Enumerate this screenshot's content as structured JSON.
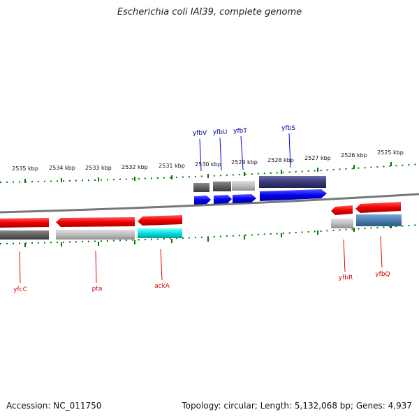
{
  "header": {
    "title": "Escherichia coli IAI39, complete genome"
  },
  "footer": {
    "accession": "Accession: NC_011750",
    "summary": "Topology: circular; Length: 5,132,068 bp; Genes: 4,937"
  },
  "scale": {
    "tick_labels": [
      "2535 kbp",
      "2534 kbp",
      "2533 kbp",
      "2532 kbp",
      "2531 kbp",
      "2530 kbp",
      "2529 kbp",
      "2528 kbp",
      "2527 kbp",
      "2526 kbp",
      "2525 kbp"
    ]
  },
  "genes": {
    "forward": [
      "yfbV",
      "yfbU",
      "yfbT",
      "yfbS"
    ],
    "reverse": [
      "yfcC",
      "pta",
      "ackA",
      "yfbR",
      "yfbQ"
    ]
  },
  "colors": {
    "forward_strand": "#0000ee",
    "reverse_strand": "#ee0000",
    "label_forward": "#00008b",
    "label_reverse": "#cc0000",
    "tick": "#007700",
    "backbone": "#777777",
    "highlight_cyan": "#00e0e0",
    "highlight_purple": "#3a3a7a",
    "highlight_steelblue": "#4a7fb0",
    "gray_dark": "#606060",
    "gray_light": "#bdbdbd"
  }
}
